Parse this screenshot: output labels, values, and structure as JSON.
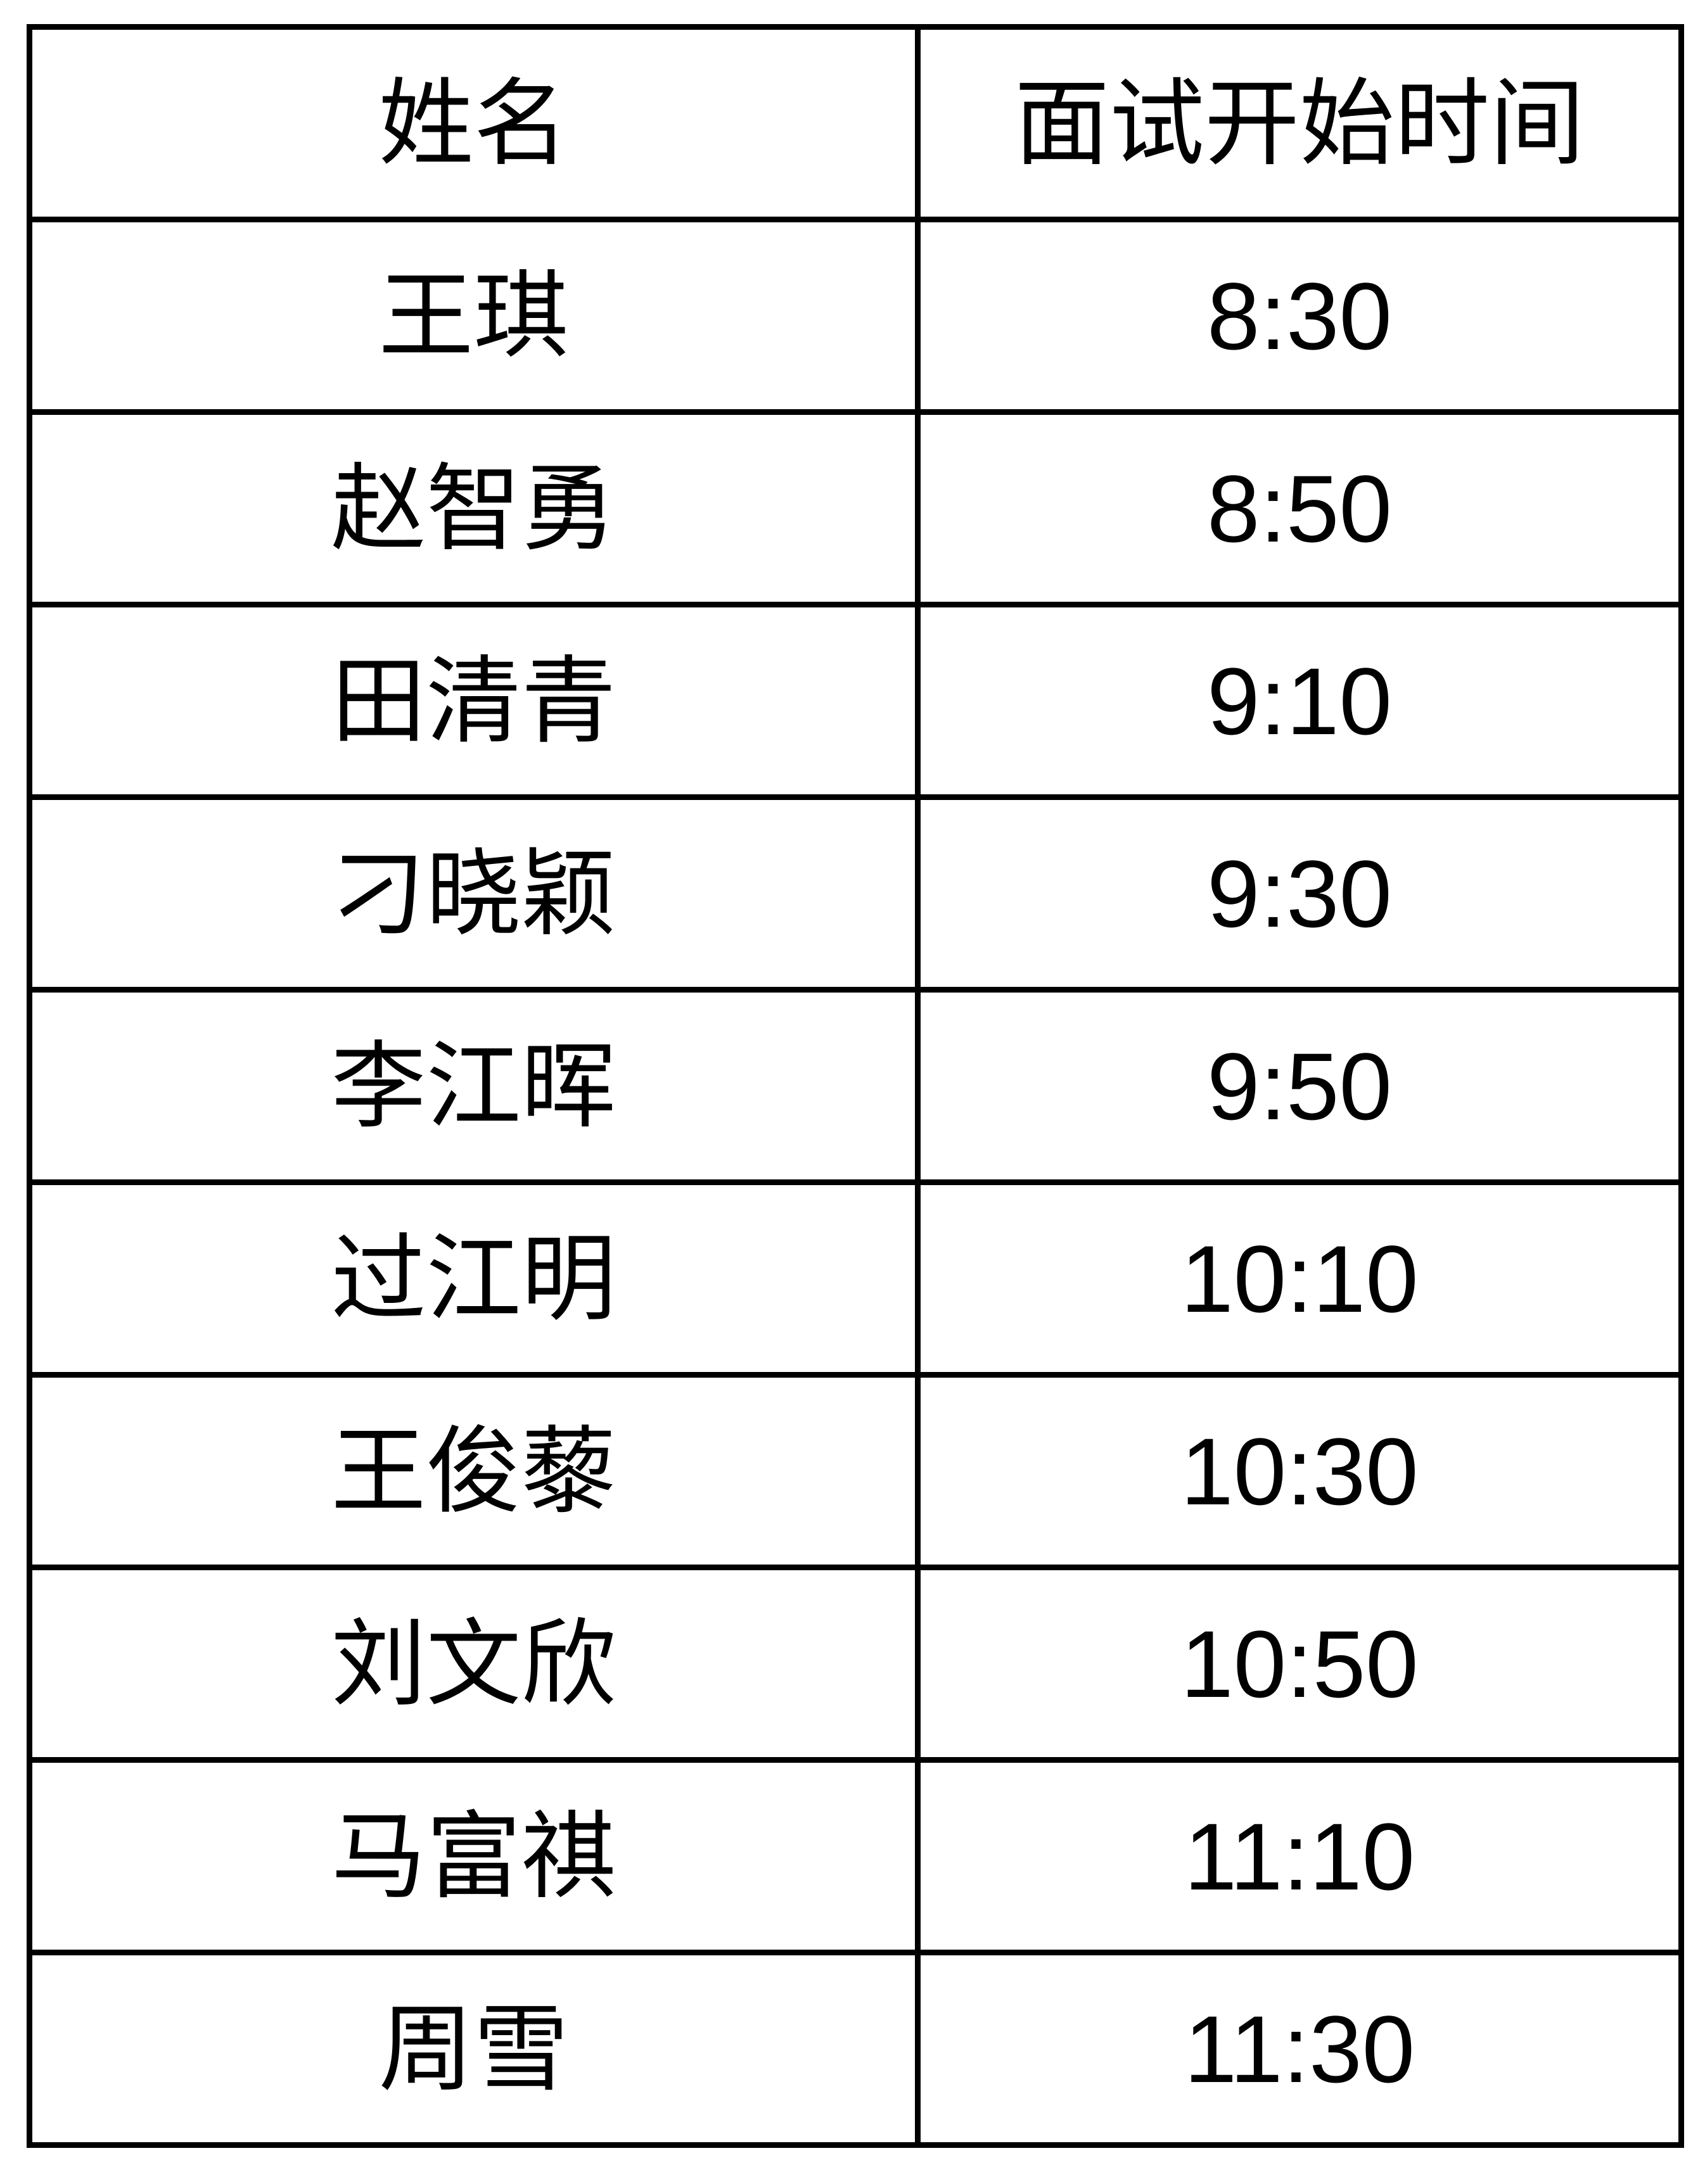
{
  "table": {
    "headers": [
      "姓名",
      "面试开始时间"
    ],
    "rows": [
      {
        "name": "王琪",
        "time": "8:30"
      },
      {
        "name": "赵智勇",
        "time": "8:50"
      },
      {
        "name": "田清青",
        "time": "9:10"
      },
      {
        "name": "刁晓颖",
        "time": "9:30"
      },
      {
        "name": "李江晖",
        "time": "9:50"
      },
      {
        "name": "过江明",
        "time": "10:10"
      },
      {
        "name": "王俊藜",
        "time": "10:30"
      },
      {
        "name": "刘文欣",
        "time": "10:50"
      },
      {
        "name": "马富祺",
        "time": "11:10"
      },
      {
        "name": "周雪",
        "time": "11:30"
      }
    ]
  }
}
